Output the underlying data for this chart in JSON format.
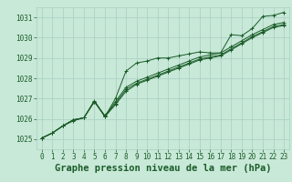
{
  "title": "Graphe pression niveau de la mer (hPa)",
  "bg_color": "#c8e8d8",
  "grid_color": "#a8cfc0",
  "line_color": "#1a5c28",
  "x_ticks": [
    0,
    1,
    2,
    3,
    4,
    5,
    6,
    7,
    8,
    9,
    10,
    11,
    12,
    13,
    14,
    15,
    16,
    17,
    18,
    19,
    20,
    21,
    22,
    23
  ],
  "ylim": [
    1024.5,
    1031.5
  ],
  "yticks": [
    1025,
    1026,
    1027,
    1028,
    1029,
    1030,
    1031
  ],
  "series": [
    [
      1025.05,
      1025.3,
      1025.65,
      1025.9,
      1026.05,
      1026.9,
      1026.1,
      1027.0,
      1028.35,
      1028.75,
      1028.85,
      1029.0,
      1029.0,
      1029.1,
      1029.2,
      1029.3,
      1029.25,
      1029.25,
      1030.15,
      1030.1,
      1030.45,
      1031.05,
      1031.1,
      1031.25
    ],
    [
      1025.05,
      1025.3,
      1025.65,
      1025.95,
      1026.05,
      1026.85,
      1026.15,
      1026.85,
      1027.55,
      1027.85,
      1028.05,
      1028.25,
      1028.45,
      1028.65,
      1028.85,
      1029.05,
      1029.15,
      1029.25,
      1029.55,
      1029.85,
      1030.15,
      1030.4,
      1030.65,
      1030.75
    ],
    [
      1025.05,
      1025.3,
      1025.65,
      1025.95,
      1026.05,
      1026.85,
      1026.15,
      1026.75,
      1027.45,
      1027.75,
      1027.95,
      1028.15,
      1028.35,
      1028.55,
      1028.75,
      1028.95,
      1029.05,
      1029.15,
      1029.45,
      1029.75,
      1030.05,
      1030.3,
      1030.55,
      1030.65
    ],
    [
      1025.05,
      1025.3,
      1025.65,
      1025.95,
      1026.05,
      1026.85,
      1026.1,
      1026.7,
      1027.35,
      1027.7,
      1027.9,
      1028.1,
      1028.3,
      1028.5,
      1028.7,
      1028.9,
      1029.0,
      1029.1,
      1029.4,
      1029.7,
      1030.0,
      1030.25,
      1030.5,
      1030.6
    ]
  ],
  "marker": "+",
  "marker_size": 3,
  "linewidth": 0.7,
  "title_fontsize": 7.5,
  "tick_fontsize": 6
}
